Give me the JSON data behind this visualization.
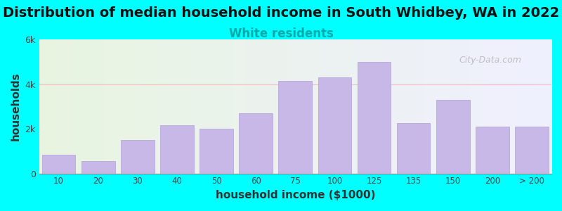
{
  "title": "Distribution of median household income in South Whidbey, WA in 2022",
  "subtitle": "White residents",
  "xlabel": "household income ($1000)",
  "ylabel": "households",
  "background_color": "#00FFFF",
  "plot_bg_gradient_left": "#e8f5e0",
  "plot_bg_gradient_right": "#f0f0ff",
  "bar_color": "#c8b8e8",
  "bar_edge_color": "#b0a0d8",
  "title_fontsize": 14,
  "subtitle_fontsize": 12,
  "subtitle_color": "#00AAAA",
  "xlabel_fontsize": 11,
  "ylabel_fontsize": 11,
  "ylim": [
    0,
    6000
  ],
  "yticks": [
    0,
    2000,
    4000,
    6000
  ],
  "ytick_labels": [
    "0",
    "2k",
    "4k",
    "6k"
  ],
  "categories": [
    "10",
    "20",
    "30",
    "40",
    "50",
    "60",
    "75",
    "100",
    "125",
    "135",
    "150",
    "200",
    "> 200"
  ],
  "values": [
    850,
    550,
    1500,
    2150,
    2000,
    2700,
    4150,
    4300,
    5000,
    2250,
    3300,
    2100,
    2100
  ],
  "bar_widths": [
    1,
    1,
    1,
    1,
    1,
    1,
    1,
    1,
    1,
    1,
    1,
    1,
    1
  ],
  "watermark": "City-Data.com"
}
